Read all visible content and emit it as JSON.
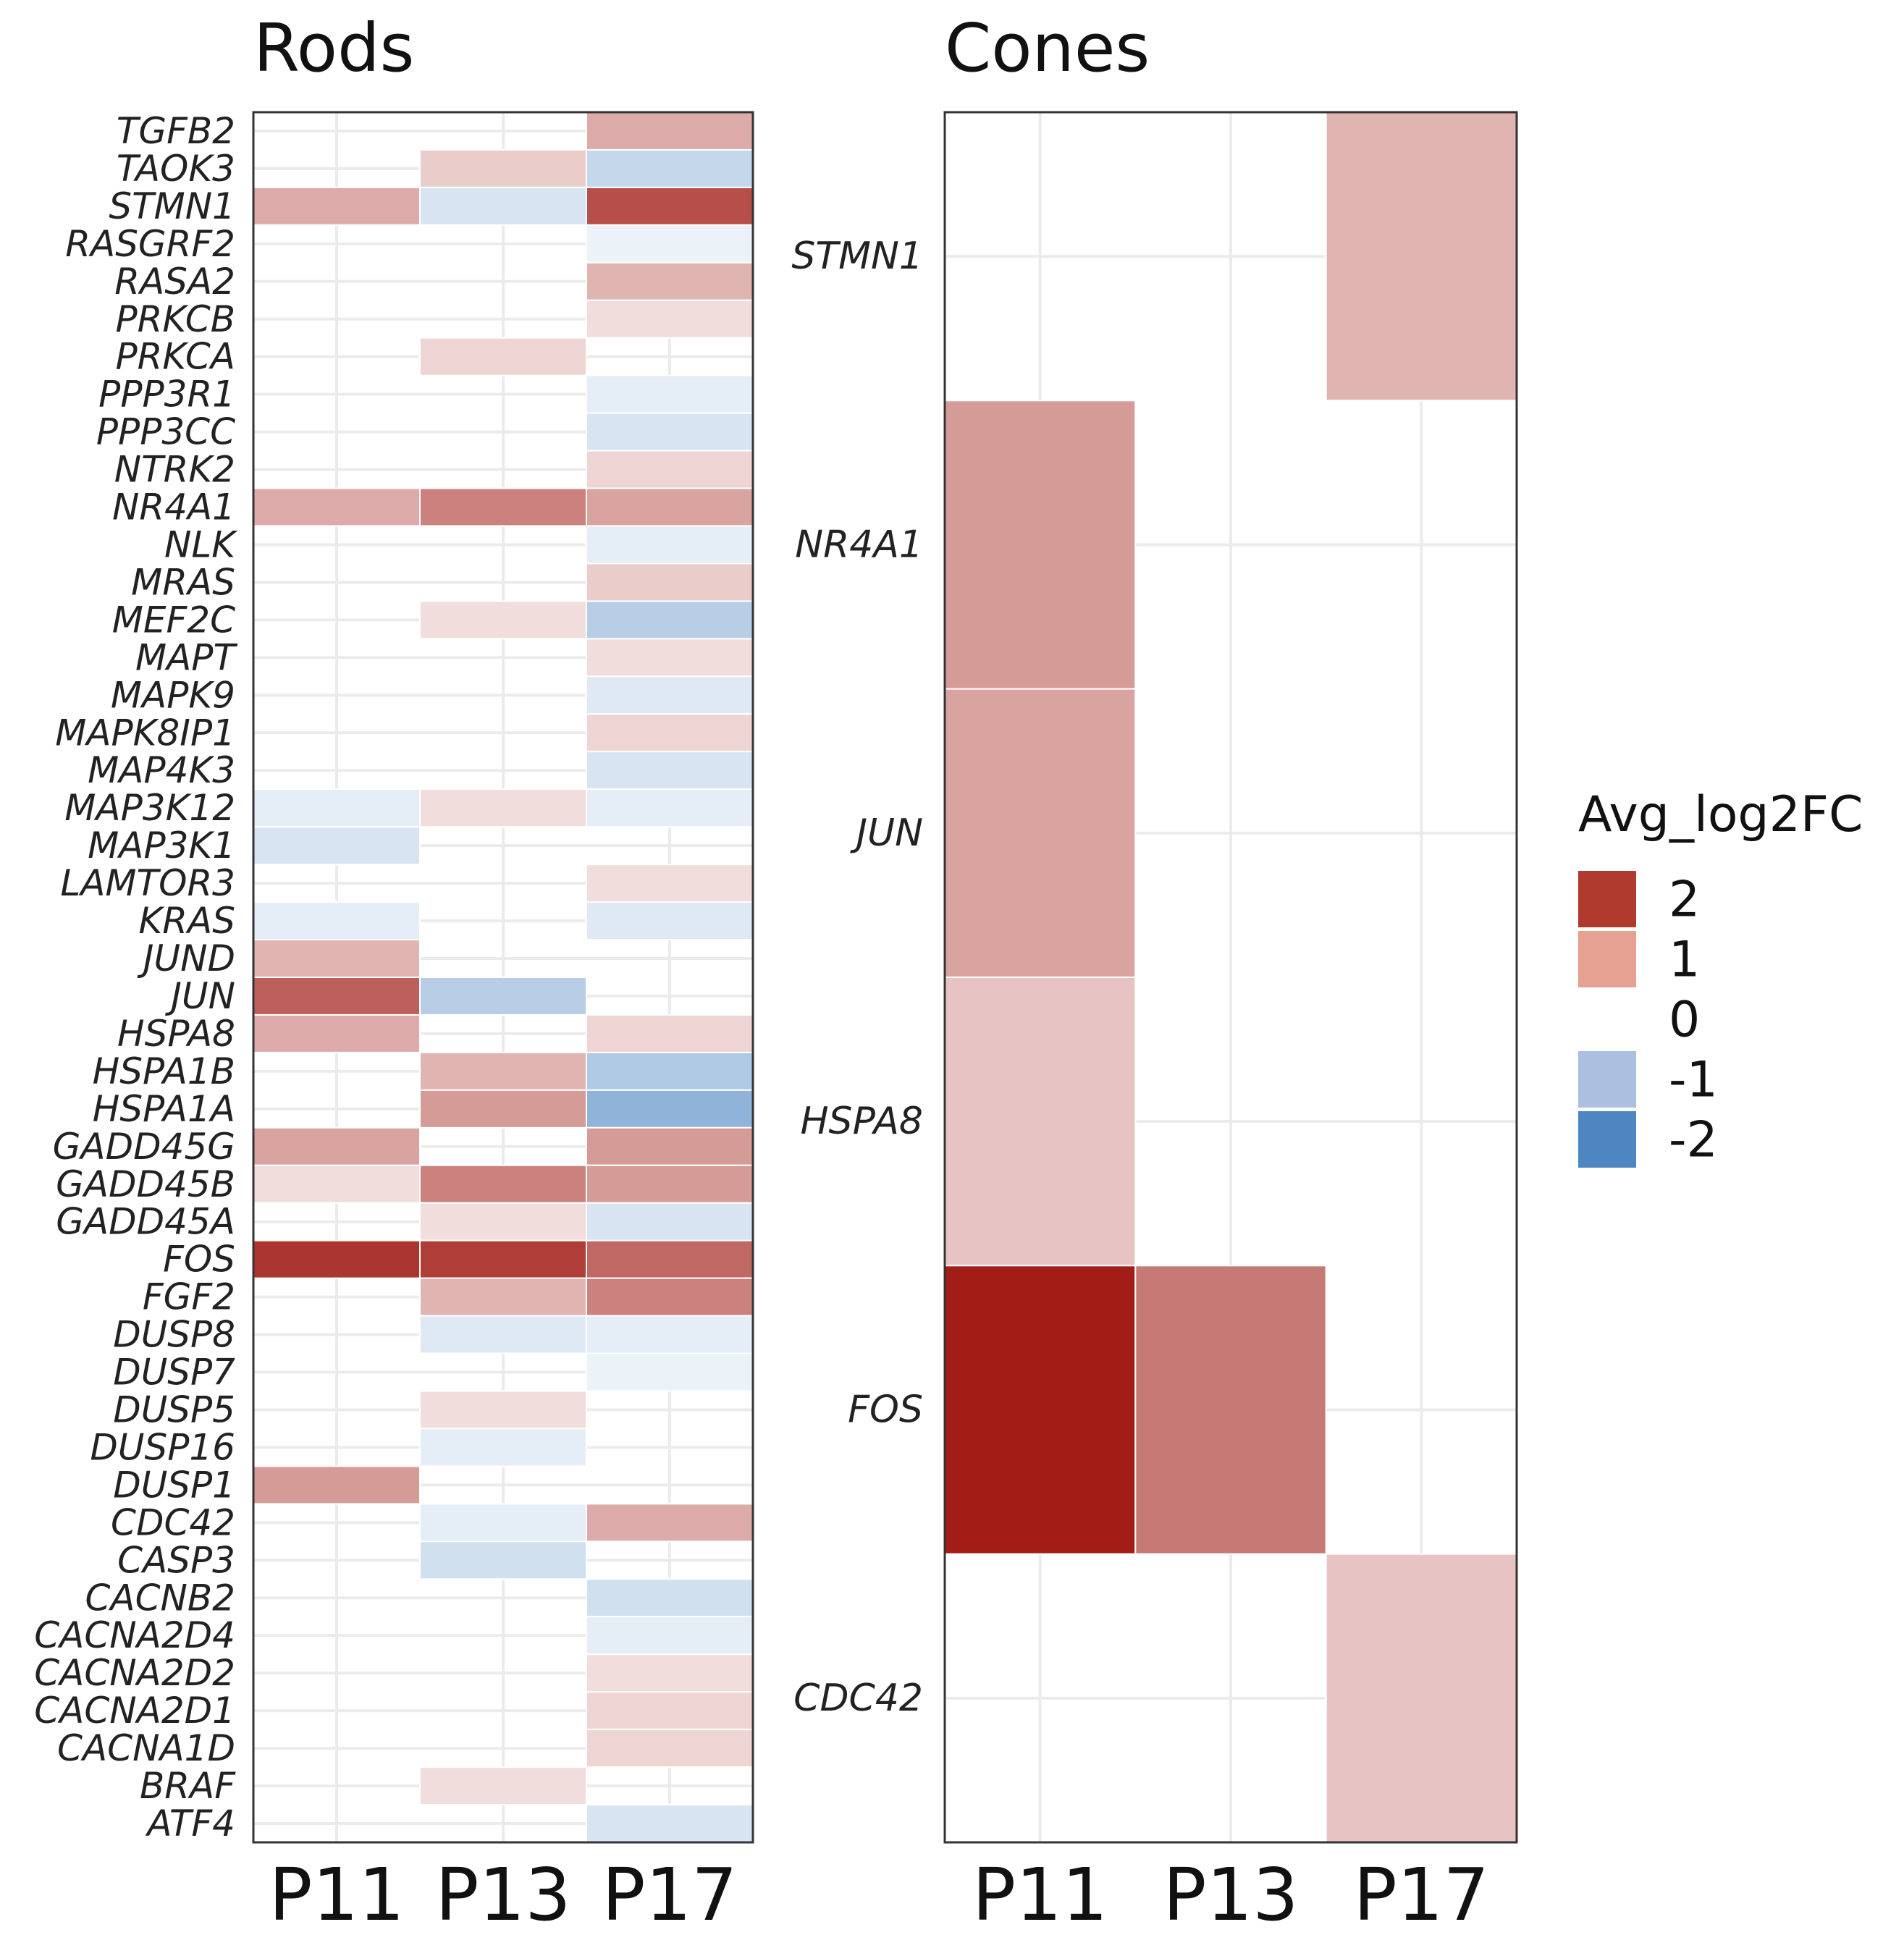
{
  "chart_data": [
    {
      "type": "heatmap",
      "title": "Rods",
      "categories": [
        "P11",
        "P13",
        "P17"
      ],
      "genes": [
        "TGFB2",
        "TAOK3",
        "STMN1",
        "RASGRF2",
        "RASA2",
        "PRKCB",
        "PRKCA",
        "PPP3R1",
        "PPP3CC",
        "NTRK2",
        "NR4A1",
        "NLK",
        "MRAS",
        "MEF2C",
        "MAPT",
        "MAPK9",
        "MAPK8IP1",
        "MAP4K3",
        "MAP3K12",
        "MAP3K1",
        "LAMTOR3",
        "KRAS",
        "JUND",
        "JUN",
        "HSPA8",
        "HSPA1B",
        "HSPA1A",
        "GADD45G",
        "GADD45B",
        "GADD45A",
        "FOS",
        "FGF2",
        "DUSP8",
        "DUSP7",
        "DUSP5",
        "DUSP16",
        "DUSP1",
        "CDC42",
        "CASP3",
        "CACNB2",
        "CACNA2D4",
        "CACNA2D2",
        "CACNA2D1",
        "CACNA1D",
        "BRAF",
        "ATF4"
      ],
      "values": [
        [
          null,
          null,
          1.0
        ],
        [
          null,
          0.6,
          -0.9
        ],
        [
          1.0,
          -0.6,
          2.1
        ],
        [
          null,
          null,
          -0.3
        ],
        [
          null,
          null,
          0.9
        ],
        [
          null,
          null,
          0.4
        ],
        [
          null,
          0.5,
          null
        ],
        [
          null,
          null,
          -0.4
        ],
        [
          null,
          null,
          -0.6
        ],
        [
          null,
          null,
          0.5
        ],
        [
          1.0,
          1.5,
          1.1
        ],
        [
          null,
          null,
          -0.4
        ],
        [
          null,
          null,
          0.6
        ],
        [
          null,
          0.4,
          -1.1
        ],
        [
          null,
          null,
          0.4
        ],
        [
          null,
          null,
          -0.5
        ],
        [
          null,
          null,
          0.5
        ],
        [
          null,
          null,
          -0.6
        ],
        [
          -0.4,
          0.4,
          -0.4
        ],
        [
          -0.6,
          null,
          null
        ],
        [
          null,
          null,
          0.4
        ],
        [
          -0.4,
          null,
          -0.5
        ],
        [
          0.9,
          null,
          null
        ],
        [
          1.9,
          -1.1,
          null
        ],
        [
          1.0,
          null,
          0.5
        ],
        [
          null,
          0.9,
          -1.2
        ],
        [
          null,
          1.2,
          -1.7
        ],
        [
          1.1,
          null,
          1.2
        ],
        [
          0.4,
          1.5,
          1.2
        ],
        [
          null,
          0.4,
          -0.6
        ],
        [
          2.4,
          2.3,
          1.8
        ],
        [
          null,
          0.9,
          1.5
        ],
        [
          null,
          -0.5,
          -0.4
        ],
        [
          null,
          null,
          -0.3
        ],
        [
          null,
          0.4,
          null
        ],
        [
          null,
          -0.4,
          null
        ],
        [
          1.2,
          null,
          null
        ],
        [
          null,
          -0.4,
          1.0
        ],
        [
          null,
          -0.7,
          null
        ],
        [
          null,
          null,
          -0.7
        ],
        [
          null,
          null,
          -0.4
        ],
        [
          null,
          null,
          0.4
        ],
        [
          null,
          null,
          0.5
        ],
        [
          null,
          null,
          0.5
        ],
        [
          null,
          0.4,
          null
        ],
        [
          null,
          null,
          -0.6
        ]
      ]
    },
    {
      "type": "heatmap",
      "title": "Cones",
      "categories": [
        "P11",
        "P13",
        "P17"
      ],
      "genes": [
        "STMN1",
        "NR4A1",
        "JUN",
        "HSPA8",
        "FOS",
        "CDC42"
      ],
      "values": [
        [
          null,
          null,
          0.9
        ],
        [
          1.2,
          null,
          null
        ],
        [
          1.1,
          null,
          null
        ],
        [
          0.7,
          null,
          null
        ],
        [
          2.7,
          1.6,
          null
        ],
        [
          null,
          null,
          0.7
        ]
      ]
    }
  ],
  "legend": {
    "title": "Avg_log2FC",
    "entries": [
      {
        "label": "2",
        "value": 2,
        "color": "#b03a2e"
      },
      {
        "label": "1",
        "value": 1,
        "color": "#e6a193"
      },
      {
        "label": "0",
        "value": 0,
        "color": "#ffffff"
      },
      {
        "label": "-1",
        "value": -1,
        "color": "#abbfe0"
      },
      {
        "label": "-2",
        "value": -2,
        "color": "#4e86c2"
      }
    ]
  },
  "colors": {
    "high": "#a11d16",
    "mid": "#ffffff",
    "low": "#4e86c2",
    "grid": "#ebebeb",
    "border": "#333333"
  }
}
